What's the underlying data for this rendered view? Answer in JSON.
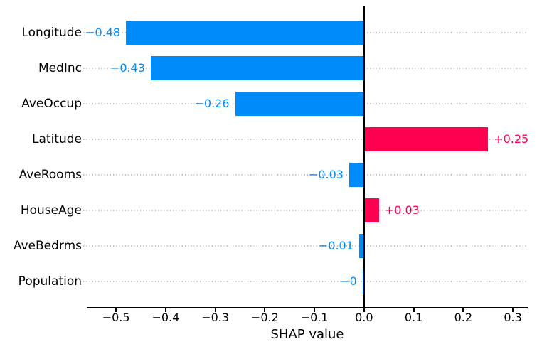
{
  "chart_data": {
    "type": "bar",
    "orientation": "horizontal",
    "title": "",
    "xlabel": "SHAP value",
    "ylabel": "",
    "categories": [
      "Longitude",
      "MedInc",
      "AveOccup",
      "Latitude",
      "AveRooms",
      "HouseAge",
      "AveBedrms",
      "Population"
    ],
    "values": [
      -0.48,
      -0.43,
      -0.26,
      0.25,
      -0.03,
      0.03,
      -0.01,
      -0.003
    ],
    "value_labels": [
      "−0.48",
      "−0.43",
      "−0.26",
      "+0.25",
      "−0.03",
      "+0.03",
      "−0.01",
      "−0"
    ],
    "xticks": [
      -0.5,
      -0.4,
      -0.3,
      -0.2,
      -0.1,
      0.0,
      0.1,
      0.2,
      0.3
    ],
    "xtick_labels": [
      "−0.5",
      "−0.4",
      "−0.3",
      "−0.2",
      "−0.1",
      "0.0",
      "0.1",
      "0.2",
      "0.3"
    ],
    "xlim": [
      -0.559,
      0.33
    ],
    "grid": "horizontal dotted gridlines",
    "legend": "none",
    "colors": {
      "negative_bar": "#008bfb",
      "positive_bar": "#ff0051",
      "axis": "#000000",
      "gridline": "#c8c8c8",
      "background": "#ffffff",
      "text": "#000000"
    }
  }
}
